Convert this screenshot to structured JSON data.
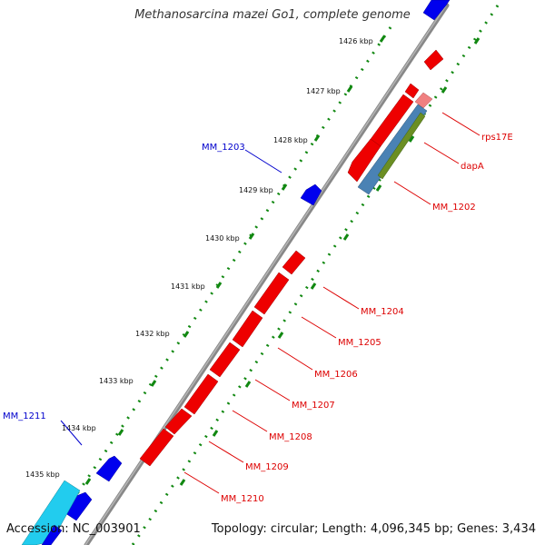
{
  "title": "Methanosarcina mazei Go1, complete genome",
  "accession": "Accession: NC_003901",
  "topology": "Topology: circular; Length: 4,096,345 bp; Genes: 3,434",
  "colors": {
    "forward_strand": "#0000ee",
    "reverse_strand": "#ee0000",
    "label_forward": "#0000cc",
    "label_reverse": "#dd0000",
    "backbone": "#888888",
    "tick": "#118811",
    "cyan_feature": "#22ccee",
    "steelblue_feature": "#4a82b4",
    "olive_feature": "#6b8e23",
    "pink_feature": "#f08080"
  },
  "ticks": [
    {
      "label": "1426 kbp"
    },
    {
      "label": "1427 kbp"
    },
    {
      "label": "1428 kbp"
    },
    {
      "label": "1429 kbp"
    },
    {
      "label": "1430 kbp"
    },
    {
      "label": "1431 kbp"
    },
    {
      "label": "1432 kbp"
    },
    {
      "label": "1433 kbp"
    },
    {
      "label": "1434 kbp"
    },
    {
      "label": "1435 kbp"
    }
  ],
  "labels": {
    "forward": [
      "MM_1203",
      "MM_1211"
    ],
    "reverse": [
      "rps17E",
      "dapA",
      "MM_1202",
      "MM_1204",
      "MM_1205",
      "MM_1206",
      "MM_1207",
      "MM_1208",
      "MM_1209",
      "MM_1210"
    ]
  }
}
